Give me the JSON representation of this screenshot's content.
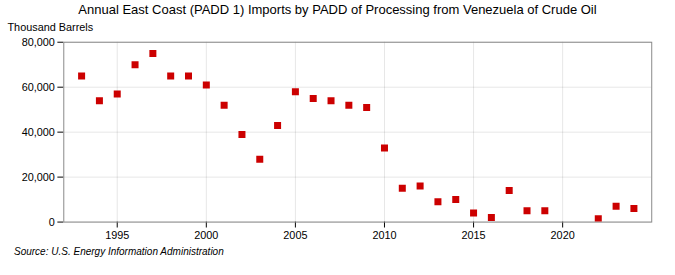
{
  "chart_data": {
    "type": "scatter",
    "title": "Annual East Coast (PADD 1) Imports by PADD of Processing from Venezuela of Crude Oil",
    "ylabel": "Thousand Barrels",
    "source": "Source: U.S. Energy Information Administration",
    "x": [
      1993,
      1994,
      1995,
      1996,
      1997,
      1998,
      1999,
      2000,
      2001,
      2002,
      2003,
      2004,
      2005,
      2006,
      2007,
      2008,
      2009,
      2010,
      2011,
      2012,
      2013,
      2014,
      2015,
      2016,
      2017,
      2018,
      2019,
      2022,
      2023,
      2024
    ],
    "values": [
      65000,
      54000,
      57000,
      70000,
      75000,
      65000,
      65000,
      61000,
      52000,
      39000,
      28000,
      43000,
      58000,
      55000,
      54000,
      52000,
      51000,
      33000,
      15000,
      16000,
      9000,
      10000,
      4000,
      2000,
      14000,
      5000,
      5000,
      1500,
      7000,
      6000
    ],
    "color": "#cc0000",
    "marker": "square",
    "xlim": [
      1992,
      2025
    ],
    "ylim": [
      0,
      80000
    ],
    "xticks": [
      1995,
      2000,
      2005,
      2010,
      2015,
      2020
    ],
    "yticks": [
      0,
      {
        "value": 20000,
        "label": "20,000"
      },
      {
        "value": 40000,
        "label": "40,000"
      },
      {
        "value": 60000,
        "label": "60,000"
      },
      {
        "value": 80000,
        "label": "80,000"
      }
    ],
    "grid": true
  }
}
